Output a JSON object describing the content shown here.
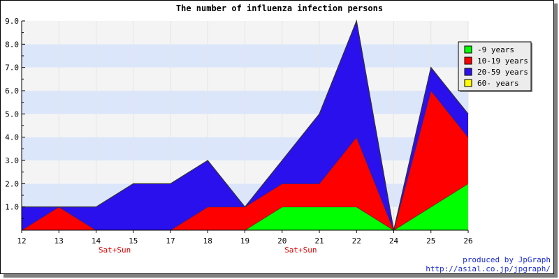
{
  "chart_data": {
    "type": "area",
    "stacked": true,
    "title": "The number of influenza infection persons",
    "x": [
      "12",
      "13",
      "14",
      "15",
      "17",
      "18",
      "19",
      "20",
      "21",
      "22",
      "24",
      "25",
      "26"
    ],
    "ylim": [
      0,
      9
    ],
    "yticks": [
      "1.0",
      "2.0",
      "3.0",
      "4.0",
      "5.0",
      "6.0",
      "7.0",
      "8.0",
      "9.0"
    ],
    "weekend_labels": [
      {
        "after": "14",
        "text": "Sat+Sun"
      },
      {
        "after": "20",
        "text": "Sat+Sun"
      }
    ],
    "series": [
      {
        "name": "-9 years",
        "color": "#00ff00",
        "values": [
          0,
          0,
          0,
          0,
          0,
          0,
          0,
          1,
          1,
          1,
          0,
          1,
          2
        ]
      },
      {
        "name": "10-19 years",
        "color": "#ff0000",
        "values": [
          0,
          1,
          0,
          0,
          0,
          1,
          1,
          1,
          1,
          3,
          0,
          5,
          2
        ]
      },
      {
        "name": "20-59 years",
        "color": "#2b10ee",
        "values": [
          1,
          0,
          1,
          2,
          2,
          2,
          0,
          1,
          3,
          5,
          0,
          1,
          1
        ]
      },
      {
        "name": "60- years",
        "color": "#ffff00",
        "values": [
          0,
          0,
          0,
          0,
          0,
          0,
          0,
          0,
          0,
          0,
          0,
          0,
          0
        ]
      }
    ],
    "band_colors": [
      "#f4f4f4",
      "#dce6fa"
    ],
    "legend_position": "top-right",
    "grid": true
  },
  "credit": {
    "line1": "produced by JpGraph",
    "line2": "http://asial.co.jp/jpgraph/"
  }
}
